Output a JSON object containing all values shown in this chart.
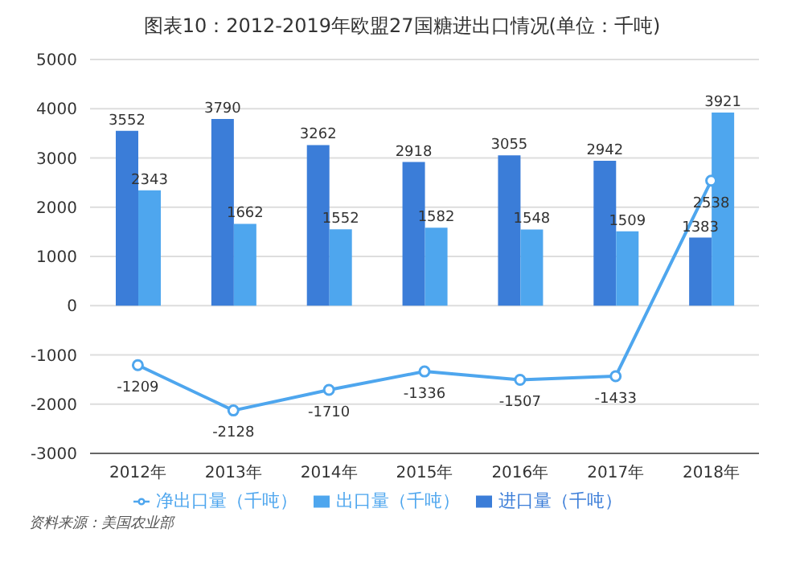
{
  "chart_data": {
    "type": "bar",
    "title": "图表10：2012-2019年欧盟27国糖进出口情况(单位：千吨)",
    "categories": [
      "2012年",
      "2013年",
      "2014年",
      "2015年",
      "2016年",
      "2017年",
      "2018年"
    ],
    "series": [
      {
        "name": "进口量（千吨）",
        "color": "#3b7dd8",
        "values": [
          3552,
          3790,
          3262,
          2918,
          3055,
          2942,
          1383
        ]
      },
      {
        "name": "出口量（千吨）",
        "color": "#4ea6ee",
        "values": [
          2343,
          1662,
          1552,
          1582,
          1548,
          1509,
          3921
        ]
      },
      {
        "name": "净出口量（千吨）",
        "type": "line",
        "color": "#4ea6ee",
        "values": [
          -1209,
          -2128,
          -1710,
          -1336,
          -1507,
          -1433,
          2538
        ]
      }
    ],
    "ylim": [
      -3000,
      5000
    ],
    "yticks": [
      -3000,
      -2000,
      -1000,
      0,
      1000,
      2000,
      3000,
      4000,
      5000
    ],
    "grid": "y",
    "legend": "bottom",
    "marker": "circle",
    "data_labels": true,
    "annotations": [
      "资料来源：美国农业部"
    ]
  }
}
